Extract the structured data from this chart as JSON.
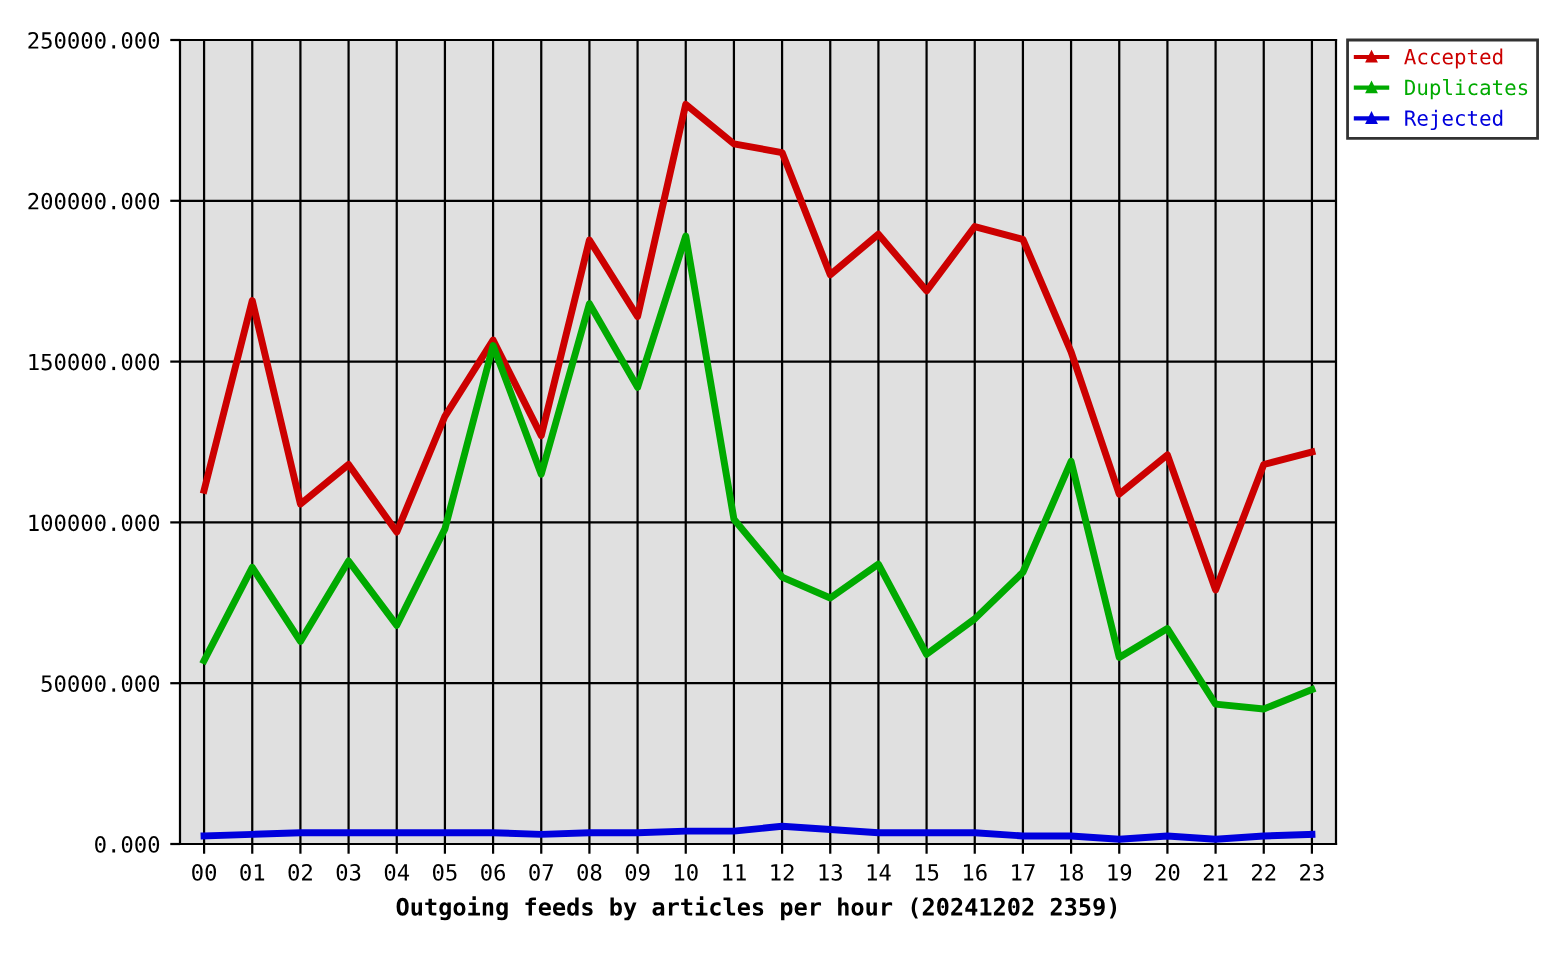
{
  "chart_data": {
    "type": "line",
    "xlabel": "Outgoing feeds by articles per hour (20241202 2359)",
    "categories": [
      "00",
      "01",
      "02",
      "03",
      "04",
      "05",
      "06",
      "07",
      "08",
      "09",
      "10",
      "11",
      "12",
      "13",
      "14",
      "15",
      "16",
      "17",
      "18",
      "19",
      "20",
      "21",
      "22",
      "23"
    ],
    "series": [
      {
        "name": "Accepted",
        "color": "#cc0000",
        "values": [
          110000,
          169000,
          105700,
          118000,
          97000,
          133000,
          156700,
          127000,
          187800,
          164000,
          230000,
          217700,
          215000,
          177000,
          189600,
          172000,
          192000,
          188000,
          153000,
          108800,
          121000,
          79000,
          118000,
          121900
        ]
      },
      {
        "name": "Duplicates",
        "color": "#00aa00",
        "values": [
          57000,
          86000,
          63000,
          88000,
          68000,
          98000,
          155000,
          115000,
          168000,
          142000,
          189000,
          101000,
          83000,
          76500,
          87000,
          59000,
          70000,
          84500,
          119000,
          58000,
          67000,
          43500,
          42000,
          48000
        ]
      },
      {
        "name": "Rejected",
        "color": "#0000dd",
        "values": [
          2500,
          3000,
          3500,
          3500,
          3500,
          3500,
          3500,
          3000,
          3500,
          3500,
          4000,
          4000,
          5500,
          4500,
          3500,
          3500,
          3500,
          2500,
          2500,
          1500,
          2500,
          1500,
          2500,
          3000
        ]
      }
    ],
    "ylim": [
      0,
      250000
    ],
    "yticks": [
      {
        "value": 0,
        "label": "0.000"
      },
      {
        "value": 50000,
        "label": "50000.000"
      },
      {
        "value": 100000,
        "label": "100000.000"
      },
      {
        "value": 150000,
        "label": "150000.000"
      },
      {
        "value": 200000,
        "label": "200000.000"
      },
      {
        "value": 250000,
        "label": "250000.000"
      }
    ],
    "grid": true,
    "legend": "top right",
    "line_style": "solid"
  }
}
